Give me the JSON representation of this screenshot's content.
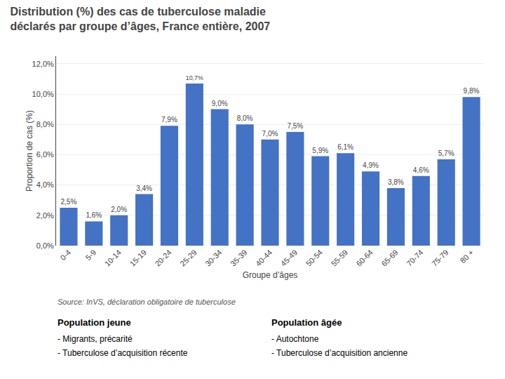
{
  "chart_data": {
    "type": "bar",
    "title": "Distribution (%) des cas de tuberculose maladie",
    "subtitle": "déclarés par groupe d’âges, France entière, 2007",
    "xlabel": "Groupe d’âges",
    "ylabel": "Proportion de cas (%)",
    "categories": [
      "0-4",
      "5-9",
      "10-14",
      "15-19",
      "20-24",
      "25-29",
      "30-34",
      "35-39",
      "40-44",
      "45-49",
      "50-54",
      "55-59",
      "60-64",
      "65-69",
      "70-74",
      "75-79",
      "80 +"
    ],
    "values": [
      2.5,
      1.6,
      2.0,
      3.4,
      7.9,
      10.7,
      9.0,
      8.0,
      7.0,
      7.5,
      5.9,
      6.1,
      4.9,
      3.8,
      4.6,
      5.7,
      9.8
    ],
    "value_labels": [
      "2,5%",
      "1,6%",
      "2,0%",
      "3,4%",
      "7,9%",
      "10,7%",
      "9,0%",
      "8,0%",
      "7,0%",
      "7,5%",
      "5,9%",
      "6,1%",
      "4,9%",
      "3,8%",
      "4,6%",
      "5,7%",
      "9,8%"
    ],
    "data_labels": true,
    "color": "#4472C4",
    "ylim": [
      0,
      12.5
    ],
    "yticks": [
      {
        "value": 0.0,
        "label": "0,0%"
      },
      {
        "value": 2.0,
        "label": "2,0%"
      },
      {
        "value": 4.0,
        "label": "4,0%"
      },
      {
        "value": 6.0,
        "label": "6,0%"
      },
      {
        "value": 8.0,
        "label": "8,0%"
      },
      {
        "value": 10.0,
        "label": "10,0%"
      },
      {
        "value": 12.0,
        "label": "12,0%"
      }
    ],
    "grid": true,
    "annotations": [
      [
        "Source: InVS, déclaration obligatoire de tuberculose"
      ],
      [
        "Population jeune",
        "- Migrants, précarité",
        "- Tuberculose d’acquisition récente"
      ],
      [
        "Population âgée",
        "- Autochtone",
        "- Tuberculose d’acquisition ancienne"
      ]
    ]
  }
}
